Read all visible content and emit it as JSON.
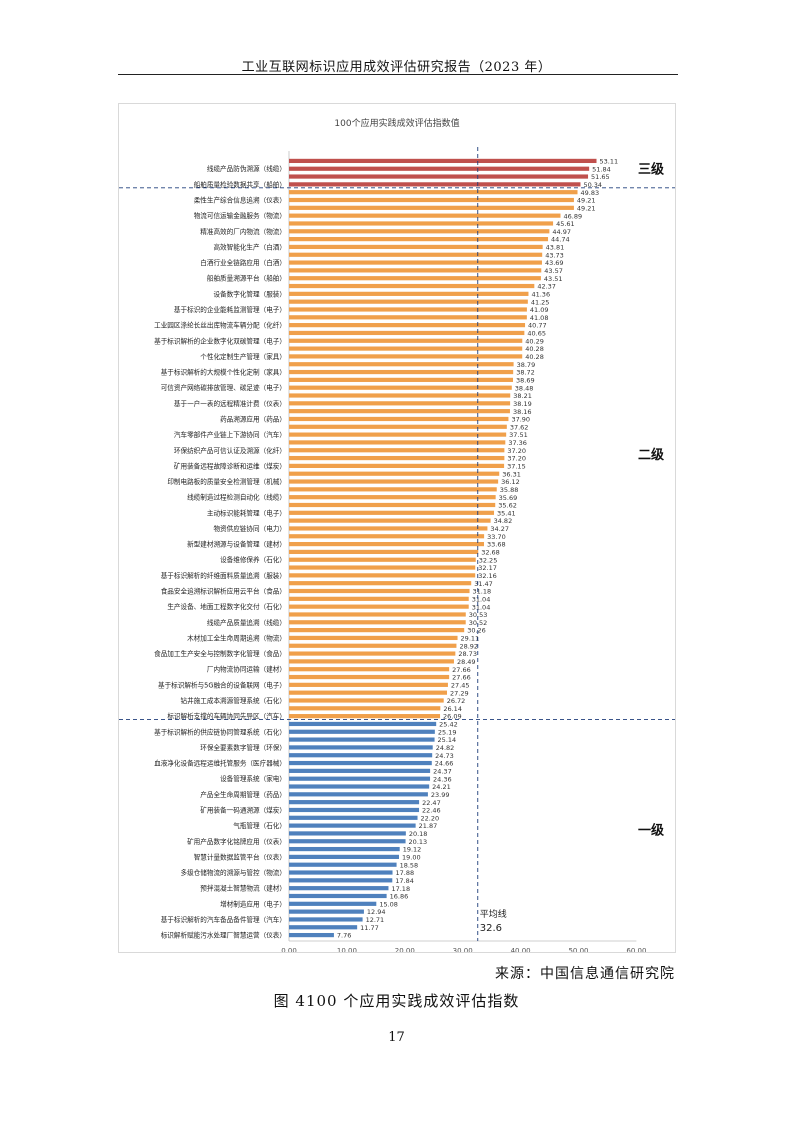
{
  "page": {
    "header": "工业互联网标识应用成效评估研究报告（2023 年）",
    "source": "来源：中国信息通信研究院",
    "caption": "图 4100 个应用实践成效评估指数",
    "page_number": "17"
  },
  "chart_data": {
    "type": "bar",
    "orientation": "horizontal",
    "title": "100个应用实践成效评估指数值",
    "xlim": [
      0,
      60
    ],
    "xticks": [
      "0.00",
      "10.00",
      "20.00",
      "30.00",
      "40.00",
      "50.00",
      "60.00"
    ],
    "average": {
      "label": "平均线",
      "value_label": "32.6",
      "value": 32.6
    },
    "tiers": [
      {
        "label": "三级",
        "color": "#c0504d"
      },
      {
        "label": "二级",
        "color": "#f0a04b"
      },
      {
        "label": "一级",
        "color": "#4f81bd"
      }
    ],
    "values": [
      53.11,
      51.84,
      51.65,
      50.34,
      49.83,
      49.21,
      49.21,
      46.89,
      45.61,
      44.97,
      44.74,
      43.81,
      43.73,
      43.69,
      43.57,
      43.51,
      42.37,
      41.36,
      41.25,
      41.09,
      41.08,
      40.77,
      40.65,
      40.29,
      40.28,
      40.28,
      38.79,
      38.72,
      38.69,
      38.48,
      38.21,
      38.19,
      38.16,
      37.9,
      37.62,
      37.51,
      37.36,
      37.2,
      37.2,
      37.15,
      36.31,
      36.12,
      35.88,
      35.69,
      35.62,
      35.41,
      34.82,
      34.27,
      33.7,
      33.68,
      32.68,
      32.25,
      32.17,
      32.16,
      31.47,
      31.18,
      31.04,
      31.04,
      30.53,
      30.52,
      30.26,
      29.11,
      28.92,
      28.73,
      28.49,
      27.66,
      27.66,
      27.45,
      27.29,
      26.72,
      26.14,
      26.09,
      25.42,
      25.19,
      25.14,
      24.82,
      24.73,
      24.66,
      24.37,
      24.36,
      24.21,
      23.99,
      22.47,
      22.46,
      22.2,
      21.87,
      20.18,
      20.13,
      19.12,
      19.0,
      18.58,
      17.88,
      17.84,
      17.18,
      16.86,
      15.08,
      12.94,
      12.71,
      11.77,
      7.76
    ],
    "value_labels": [
      "53.11",
      "51.84",
      "51.65",
      "50.34",
      "49.83",
      "49.21",
      "49.21",
      "46.89",
      "45.61",
      "44.97",
      "44.74",
      "43.81",
      "43.73",
      "43.69",
      "43.57",
      "43.51",
      "42.37",
      "41.36",
      "41.25",
      "41.09",
      "41.08",
      "40.77",
      "40.65",
      "40.29",
      "40.28",
      "40.28",
      "38.79",
      "38.72",
      "38.69",
      "38.48",
      "38.21",
      "38.19",
      "38.16",
      "37.90",
      "37.62",
      "37.51",
      "37.36",
      "37.20",
      "37.20",
      "37.15",
      "36.31",
      "36.12",
      "35.88",
      "35.69",
      "35.62",
      "35.41",
      "34.82",
      "34.27",
      "33.70",
      "33.68",
      "32.68",
      "32.25",
      "32.17",
      "32.16",
      "31.47",
      "31.18",
      "31.04",
      "31.04",
      "30.53",
      "30.52",
      "30.26",
      "29.11",
      "28.92",
      "28.73",
      "28.49",
      "27.66",
      "27.66",
      "27.45",
      "27.29",
      "26.72",
      "26.14",
      "26.09",
      "25.42",
      "25.19",
      "25.14",
      "24.82",
      "24.73",
      "24.66",
      "24.37",
      "24.36",
      "24.21",
      "23.99",
      "22.47",
      "22.46",
      "22.20",
      "21.87",
      "20.18",
      "20.13",
      "19.12",
      "19.00",
      "18.58",
      "17.88",
      "17.84",
      "17.18",
      "16.86",
      "15.08",
      "12.94",
      "12.71",
      "11.77",
      "7.76"
    ],
    "category_labels": [
      {
        "index": 1,
        "text": "线缆产品防伪溯源（线缆）"
      },
      {
        "index": 3,
        "text": "船舶质量检验数据共享（船舶）"
      },
      {
        "index": 5,
        "text": "柔性生产综合信息追溯（仪表）"
      },
      {
        "index": 7,
        "text": "物流可信运输金融服务（物流）"
      },
      {
        "index": 9,
        "text": "精准高效的厂内物流（物流）"
      },
      {
        "index": 11,
        "text": "高效智能化生产（白酒）"
      },
      {
        "index": 13,
        "text": "白酒行业全链路应用（白酒）"
      },
      {
        "index": 15,
        "text": "船舶质量溯源平台（船舶）"
      },
      {
        "index": 17,
        "text": "设备数字化管理（服装）"
      },
      {
        "index": 19,
        "text": "基于标识的企业能耗监测管理（电子）"
      },
      {
        "index": 21,
        "text": "工业园区涤纶长丝出库物流车辆分配（化纤）"
      },
      {
        "index": 23,
        "text": "基于标识解析的企业数字化双碳管理（电子）"
      },
      {
        "index": 25,
        "text": "个性化定制生产管理（家具）"
      },
      {
        "index": 27,
        "text": "基于标识解析的大规模个性化定制（家具）"
      },
      {
        "index": 29,
        "text": "可信资产网络碳排放管理、碳足迹（电子）"
      },
      {
        "index": 31,
        "text": "基于一户一表的远程精准计费（仪表）"
      },
      {
        "index": 33,
        "text": "药品溯源应用（药品）"
      },
      {
        "index": 35,
        "text": "汽车零部件产业链上下游协同（汽车）"
      },
      {
        "index": 37,
        "text": "环保纺织产品可信认证及溯源（化纤）"
      },
      {
        "index": 39,
        "text": "矿用装备远程故障诊断和运维（煤炭）"
      },
      {
        "index": 41,
        "text": "印制电路板的质量安全检测管理（机械）"
      },
      {
        "index": 43,
        "text": "线缆制造过程检测自动化（线缆）"
      },
      {
        "index": 45,
        "text": "主动标识能耗管理（电子）"
      },
      {
        "index": 47,
        "text": "物资供应链协同（电力）"
      },
      {
        "index": 49,
        "text": "新型建材溯源与设备管理（建材）"
      },
      {
        "index": 51,
        "text": "设备维修保养（石化）"
      },
      {
        "index": 53,
        "text": "基于标识解析的纤维面料质量追溯（服装）"
      },
      {
        "index": 55,
        "text": "食品安全追溯标识解析应用云平台（食品）"
      },
      {
        "index": 57,
        "text": "生产设备、地面工程数字化交付（石化）"
      },
      {
        "index": 59,
        "text": "线缆产品质量追溯（线缆）"
      },
      {
        "index": 61,
        "text": "木材加工全生命周期追溯（物流）"
      },
      {
        "index": 63,
        "text": "食品加工生产安全与控制数字化管理（食品）"
      },
      {
        "index": 65,
        "text": "厂内物流协同运输（建材）"
      },
      {
        "index": 67,
        "text": "基于标识解析与5G融合的设备联网（电子）"
      },
      {
        "index": 69,
        "text": "钻井施工成本溯源管理系统（石化）"
      },
      {
        "index": 71,
        "text": "标识解析支撑的车辆协同先导区（汽车）"
      },
      {
        "index": 73,
        "text": "基于标识解析的供应链协同管理系统（石化）"
      },
      {
        "index": 75,
        "text": "环保全要素数字管理（环保）"
      },
      {
        "index": 77,
        "text": "血液净化设备远程运维托管服务（医疗器械）"
      },
      {
        "index": 79,
        "text": "设备管理系统（家电）"
      },
      {
        "index": 81,
        "text": "产品全生命周期管理（药品）"
      },
      {
        "index": 83,
        "text": "矿用装备一码通溯源（煤炭）"
      },
      {
        "index": 85,
        "text": "气瓶管理（石化）"
      },
      {
        "index": 87,
        "text": "矿用产品数字化铭牌应用（仪表）"
      },
      {
        "index": 89,
        "text": "智慧计量数据监管平台（仪表）"
      },
      {
        "index": 91,
        "text": "多级仓储物流的溯源与管控（物流）"
      },
      {
        "index": 93,
        "text": "预拌混凝土智慧物流（建材）"
      },
      {
        "index": 95,
        "text": "增材制造应用（电子）"
      },
      {
        "index": 97,
        "text": "基于标识解析的汽车备品备件管理（汽车）"
      },
      {
        "index": 99,
        "text": "标识解析赋能污水处理厂智慧运营（仪表）"
      }
    ]
  }
}
